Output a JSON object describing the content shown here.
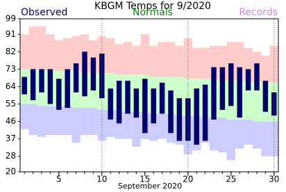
{
  "chart_data": {
    "type": "range",
    "title": "KBGM Temps for 9/2020",
    "x_label": "September 2020",
    "x": [
      1,
      2,
      3,
      4,
      5,
      6,
      7,
      8,
      9,
      10,
      11,
      12,
      13,
      14,
      15,
      16,
      17,
      18,
      19,
      20,
      21,
      22,
      23,
      24,
      25,
      26,
      27,
      28,
      29,
      30
    ],
    "xlim": [
      0.5,
      30.5
    ],
    "xticks": [
      5,
      10,
      15,
      20,
      25,
      30
    ],
    "xgrid": [
      10,
      20,
      30
    ],
    "ylim": [
      20,
      99
    ],
    "yticks": [
      20,
      28,
      37,
      46,
      55,
      64,
      73,
      82,
      91,
      99
    ],
    "series": [
      {
        "name": "Records",
        "color": "#cc88dd",
        "band_colors": [
          "#ffcccc",
          "#ccccff"
        ],
        "high": [
          91,
          95,
          95,
          91,
          88,
          89,
          90,
          91,
          88,
          90,
          89,
          86,
          87,
          85,
          91,
          85,
          87,
          87,
          85,
          89,
          84,
          84,
          85,
          85,
          87,
          87,
          84,
          82,
          80,
          85
        ],
        "low": [
          42,
          39,
          38,
          39,
          39,
          39,
          35,
          39,
          39,
          36,
          38,
          37,
          37,
          33,
          37,
          36,
          37,
          35,
          34,
          29,
          31,
          35,
          31,
          30,
          26,
          32,
          34,
          32,
          28,
          28
        ]
      },
      {
        "name": "Normals",
        "color": "#008800",
        "band_color": "#ccffcc",
        "high": [
          73,
          73,
          73,
          72,
          72,
          72,
          72,
          71,
          71,
          71,
          71,
          70,
          70,
          70,
          70,
          69,
          69,
          69,
          69,
          68,
          68,
          68,
          68,
          67,
          67,
          67,
          67,
          66,
          66,
          66
        ],
        "low": [
          55,
          55,
          54,
          54,
          54,
          54,
          53,
          53,
          53,
          52,
          52,
          52,
          51,
          51,
          51,
          50,
          50,
          50,
          49,
          49,
          49,
          48,
          48,
          48,
          47,
          47,
          47,
          46,
          46,
          46
        ]
      },
      {
        "name": "Observed",
        "color": "#000066",
        "high": [
          69,
          73,
          73,
          73,
          68,
          73,
          76,
          82,
          79,
          81,
          63,
          67,
          67,
          63,
          68,
          63,
          66,
          62,
          58,
          58,
          63,
          65,
          74,
          74,
          76,
          74,
          73,
          76,
          67,
          61
        ],
        "low": [
          60,
          57,
          61,
          55,
          52,
          53,
          61,
          59,
          62,
          58,
          47,
          45,
          50,
          48,
          40,
          45,
          50,
          40,
          36,
          36,
          34,
          36,
          47,
          52,
          54,
          48,
          62,
          62,
          51,
          49
        ]
      }
    ]
  }
}
